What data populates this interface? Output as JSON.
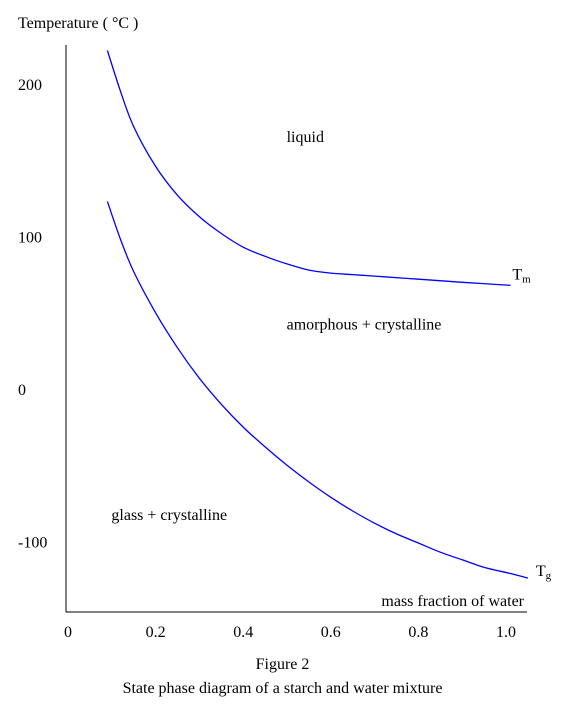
{
  "chart_data": {
    "type": "line",
    "ylabel": "Temperature ( °C )",
    "xlabel": "mass fraction of water",
    "x_ticks": [
      "0",
      "0.2",
      "0.4",
      "0.6",
      "0.8",
      "1.0"
    ],
    "y_ticks": [
      "200",
      "100",
      "0",
      "-100"
    ],
    "xlim": [
      0,
      1.05
    ],
    "ylim": [
      -150,
      240
    ],
    "grid": false,
    "series": [
      {
        "name": "Tm",
        "label_main": "T",
        "label_sub": "m",
        "color": "#0000ff",
        "points": [
          [
            0.09,
            222
          ],
          [
            0.12,
            195
          ],
          [
            0.15,
            172
          ],
          [
            0.2,
            146
          ],
          [
            0.25,
            127
          ],
          [
            0.3,
            113
          ],
          [
            0.35,
            102
          ],
          [
            0.4,
            93
          ],
          [
            0.45,
            87
          ],
          [
            0.5,
            82
          ],
          [
            0.55,
            78
          ],
          [
            0.6,
            76
          ],
          [
            0.65,
            75
          ],
          [
            0.7,
            74
          ],
          [
            0.8,
            72
          ],
          [
            0.9,
            70
          ],
          [
            1.01,
            68
          ]
        ]
      },
      {
        "name": "Tg",
        "label_main": "T",
        "label_sub": "g",
        "color": "#0000ff",
        "points": [
          [
            0.09,
            123
          ],
          [
            0.12,
            98
          ],
          [
            0.15,
            77
          ],
          [
            0.2,
            50
          ],
          [
            0.25,
            27
          ],
          [
            0.3,
            7
          ],
          [
            0.35,
            -10
          ],
          [
            0.4,
            -25
          ],
          [
            0.45,
            -38
          ],
          [
            0.5,
            -50
          ],
          [
            0.55,
            -61
          ],
          [
            0.6,
            -71
          ],
          [
            0.65,
            -80
          ],
          [
            0.7,
            -88
          ],
          [
            0.75,
            -95
          ],
          [
            0.8,
            -101
          ],
          [
            0.85,
            -107
          ],
          [
            0.9,
            -112
          ],
          [
            0.95,
            -117
          ],
          [
            1.01,
            -121
          ],
          [
            1.05,
            -124
          ]
        ]
      }
    ],
    "annotations": [
      {
        "text": "liquid",
        "x": 0.49,
        "y": 166
      },
      {
        "text": "amorphous + crystalline",
        "x": 0.49,
        "y": 43
      },
      {
        "text": "glass + crystalline",
        "x": 0.09,
        "y": -82
      }
    ]
  },
  "caption": {
    "figure": "Figure 2",
    "description": "State phase diagram of a starch and water mixture"
  }
}
